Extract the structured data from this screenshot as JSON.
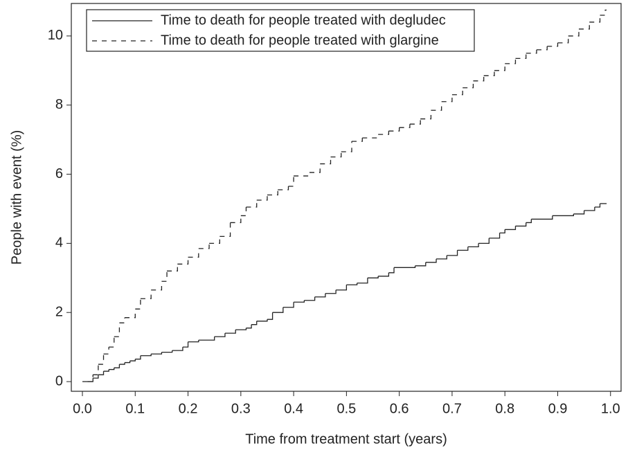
{
  "chart_data": {
    "type": "step",
    "xlabel": "Time from treatment start (years)",
    "ylabel": "People with event (%)",
    "xlim": [
      -0.021,
      1.02
    ],
    "ylim": [
      -0.28,
      10.94
    ],
    "xticks": [
      {
        "value": 0,
        "label": "0.0"
      },
      {
        "value": 0.1,
        "label": "0.1"
      },
      {
        "value": 0.2,
        "label": "0.2"
      },
      {
        "value": 0.3,
        "label": "0.3"
      },
      {
        "value": 0.4,
        "label": "0.4"
      },
      {
        "value": 0.5,
        "label": "0.5"
      },
      {
        "value": 0.6,
        "label": "0.6"
      },
      {
        "value": 0.7,
        "label": "0.7"
      },
      {
        "value": 0.8,
        "label": "0.8"
      },
      {
        "value": 0.9,
        "label": "0.9"
      },
      {
        "value": 1,
        "label": "1.0"
      }
    ],
    "yticks": [
      0,
      2,
      4,
      6,
      8,
      10
    ],
    "legend": "top-left",
    "series": [
      {
        "name": "Time to death for people treated with degludec",
        "color": "#222222",
        "line_style": "solid",
        "x": [
          0,
          0.02,
          0.03,
          0.04,
          0.05,
          0.06,
          0.07,
          0.08,
          0.09,
          0.1,
          0.11,
          0.13,
          0.15,
          0.17,
          0.19,
          0.2,
          0.22,
          0.25,
          0.27,
          0.29,
          0.31,
          0.32,
          0.33,
          0.35,
          0.36,
          0.38,
          0.4,
          0.42,
          0.44,
          0.46,
          0.48,
          0.5,
          0.52,
          0.54,
          0.56,
          0.58,
          0.59,
          0.63,
          0.65,
          0.67,
          0.69,
          0.71,
          0.73,
          0.75,
          0.77,
          0.79,
          0.8,
          0.82,
          0.84,
          0.85,
          0.89,
          0.93,
          0.95,
          0.97,
          0.98,
          0.99
        ],
        "values": [
          0,
          0.1,
          0.2,
          0.3,
          0.35,
          0.4,
          0.5,
          0.55,
          0.6,
          0.65,
          0.75,
          0.8,
          0.85,
          0.9,
          1.0,
          1.15,
          1.2,
          1.3,
          1.4,
          1.5,
          1.55,
          1.65,
          1.75,
          1.8,
          2.0,
          2.15,
          2.3,
          2.35,
          2.45,
          2.55,
          2.65,
          2.8,
          2.85,
          3.0,
          3.05,
          3.15,
          3.3,
          3.35,
          3.45,
          3.55,
          3.65,
          3.8,
          3.9,
          4.0,
          4.15,
          4.3,
          4.4,
          4.5,
          4.6,
          4.7,
          4.8,
          4.85,
          4.95,
          5.05,
          5.15,
          5.15
        ]
      },
      {
        "name": "Time to death for people treated with glargine",
        "color": "#222222",
        "line_style": "dashed",
        "x": [
          0.01,
          0.02,
          0.03,
          0.04,
          0.05,
          0.06,
          0.07,
          0.08,
          0.1,
          0.11,
          0.13,
          0.15,
          0.16,
          0.18,
          0.2,
          0.22,
          0.24,
          0.26,
          0.28,
          0.3,
          0.31,
          0.33,
          0.35,
          0.37,
          0.39,
          0.4,
          0.43,
          0.45,
          0.47,
          0.49,
          0.51,
          0.53,
          0.56,
          0.58,
          0.6,
          0.62,
          0.64,
          0.66,
          0.68,
          0.7,
          0.72,
          0.74,
          0.76,
          0.78,
          0.8,
          0.82,
          0.84,
          0.86,
          0.88,
          0.9,
          0.92,
          0.94,
          0.96,
          0.98,
          0.99
        ],
        "values": [
          0,
          0.2,
          0.5,
          0.8,
          1.0,
          1.3,
          1.7,
          1.85,
          2.1,
          2.4,
          2.65,
          2.9,
          3.2,
          3.4,
          3.6,
          3.85,
          4.0,
          4.2,
          4.6,
          4.8,
          5.05,
          5.25,
          5.4,
          5.55,
          5.65,
          5.95,
          6.05,
          6.3,
          6.5,
          6.65,
          6.95,
          7.05,
          7.15,
          7.25,
          7.35,
          7.45,
          7.6,
          7.85,
          8.1,
          8.3,
          8.5,
          8.7,
          8.85,
          9.0,
          9.2,
          9.35,
          9.5,
          9.6,
          9.7,
          9.8,
          10.0,
          10.2,
          10.4,
          10.6,
          10.75
        ]
      }
    ]
  }
}
